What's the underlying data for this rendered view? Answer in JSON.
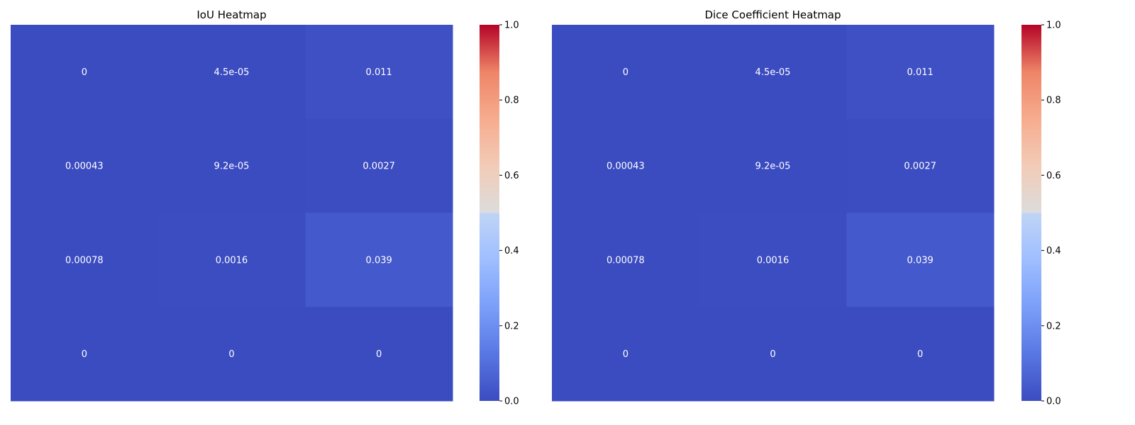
{
  "chart_data": [
    {
      "type": "heatmap",
      "title": "IoU Heatmap",
      "rows": 4,
      "cols": 3,
      "values": [
        [
          0,
          4.5e-05,
          0.011
        ],
        [
          0.00043,
          9.2e-05,
          0.0027
        ],
        [
          0.00078,
          0.0016,
          0.039
        ],
        [
          0,
          0,
          0
        ]
      ],
      "annotations": [
        [
          "0",
          "4.5e-05",
          "0.011"
        ],
        [
          "0.00043",
          "9.2e-05",
          "0.0027"
        ],
        [
          "0.00078",
          "0.0016",
          "0.039"
        ],
        [
          "0",
          "0",
          "0"
        ]
      ],
      "xticks": false,
      "yticks": false,
      "colorbar": {
        "range": [
          0,
          1
        ],
        "colormap": "coolwarm",
        "ticks": [
          0,
          0.2,
          0.4,
          0.6,
          0.8,
          1.0
        ],
        "tick_labels": [
          "0.0",
          "0.2",
          "0.4",
          "0.6",
          "0.8",
          "1.0"
        ]
      }
    },
    {
      "type": "heatmap",
      "title": "Dice Coefficient Heatmap",
      "rows": 4,
      "cols": 3,
      "values": [
        [
          0,
          4.5e-05,
          0.011
        ],
        [
          0.00043,
          9.2e-05,
          0.0027
        ],
        [
          0.00078,
          0.0016,
          0.039
        ],
        [
          0,
          0,
          0
        ]
      ],
      "annotations": [
        [
          "0",
          "4.5e-05",
          "0.011"
        ],
        [
          "0.00043",
          "9.2e-05",
          "0.0027"
        ],
        [
          "0.00078",
          "0.0016",
          "0.039"
        ],
        [
          "0",
          "0",
          "0"
        ]
      ],
      "xticks": false,
      "yticks": false,
      "colorbar": {
        "range": [
          0,
          1
        ],
        "colormap": "coolwarm",
        "ticks": [
          0,
          0.2,
          0.4,
          0.6,
          0.8,
          1.0
        ],
        "tick_labels": [
          "0.0",
          "0.2",
          "0.4",
          "0.6",
          "0.8",
          "1.0"
        ]
      }
    }
  ]
}
